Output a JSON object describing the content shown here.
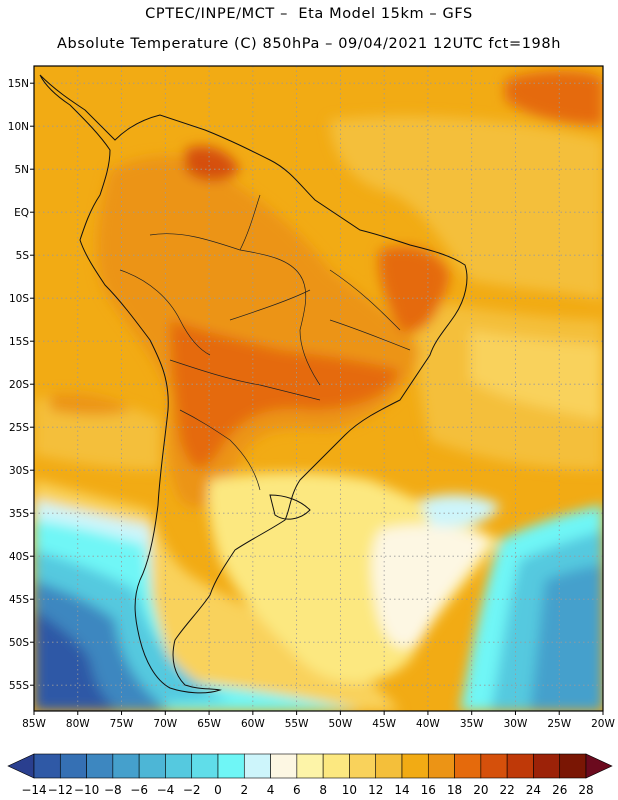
{
  "header": {
    "line1": "CPTEC/INPE/MCT –  Eta Model 15km – GFS",
    "line2": "Absolute Temperature (C) 850hPa – 09/04/2021 12UTC fct=198h"
  },
  "map": {
    "lon_range": [
      -85,
      -20
    ],
    "lat_range": [
      -58,
      17
    ],
    "lat_ticks": [
      {
        "value": 15,
        "label": "15N"
      },
      {
        "value": 10,
        "label": "10N"
      },
      {
        "value": 5,
        "label": "5N"
      },
      {
        "value": 0,
        "label": "EQ"
      },
      {
        "value": -5,
        "label": "5S"
      },
      {
        "value": -10,
        "label": "10S"
      },
      {
        "value": -15,
        "label": "15S"
      },
      {
        "value": -20,
        "label": "20S"
      },
      {
        "value": -25,
        "label": "25S"
      },
      {
        "value": -30,
        "label": "30S"
      },
      {
        "value": -35,
        "label": "35S"
      },
      {
        "value": -40,
        "label": "40S"
      },
      {
        "value": -45,
        "label": "45S"
      },
      {
        "value": -50,
        "label": "50S"
      },
      {
        "value": -55,
        "label": "55S"
      }
    ],
    "lon_ticks": [
      {
        "value": -85,
        "label": "85W"
      },
      {
        "value": -80,
        "label": "80W"
      },
      {
        "value": -75,
        "label": "75W"
      },
      {
        "value": -70,
        "label": "70W"
      },
      {
        "value": -65,
        "label": "65W"
      },
      {
        "value": -60,
        "label": "60W"
      },
      {
        "value": -55,
        "label": "55W"
      },
      {
        "value": -50,
        "label": "50W"
      },
      {
        "value": -45,
        "label": "45W"
      },
      {
        "value": -40,
        "label": "40W"
      },
      {
        "value": -35,
        "label": "35W"
      },
      {
        "value": -30,
        "label": "30W"
      },
      {
        "value": -25,
        "label": "25W"
      },
      {
        "value": -20,
        "label": "20W"
      }
    ],
    "gridlines": true
  },
  "colorbar": {
    "colors": [
      "#2a3f8f",
      "#2f59a6",
      "#3570b4",
      "#3d87c0",
      "#45a0cc",
      "#4db6d6",
      "#55c9df",
      "#60dde9",
      "#6ff6f6",
      "#cdf5fb",
      "#fdf7e3",
      "#fdf4a8",
      "#fce880",
      "#f9d25b",
      "#f4bf3a",
      "#f2ab14",
      "#ec9415",
      "#e56a0c",
      "#d5500b",
      "#bf3908",
      "#9c2208",
      "#7a1604",
      "#6b0a1e"
    ],
    "labels": [
      "-14",
      "-12",
      "-10",
      "-8",
      "-6",
      "-4",
      "-2",
      "0",
      "2",
      "4",
      "6",
      "8",
      "10",
      "12",
      "14",
      "16",
      "18",
      "20",
      "22",
      "24",
      "26",
      "28"
    ]
  }
}
